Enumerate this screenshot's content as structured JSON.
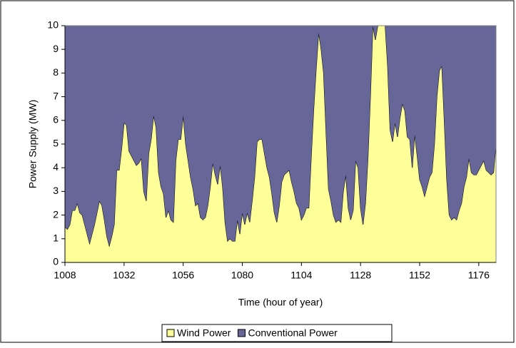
{
  "chart_data": {
    "type": "stacked_area",
    "x_label": "Time (hour of year)",
    "y_label": "Power Supply (MW)",
    "x": [
      1008,
      1009,
      1010,
      1011,
      1012,
      1013,
      1014,
      1015,
      1016,
      1017,
      1018,
      1019,
      1020,
      1021,
      1022,
      1023,
      1024,
      1025,
      1026,
      1027,
      1028,
      1029,
      1030,
      1031,
      1032,
      1033,
      1034,
      1035,
      1036,
      1037,
      1038,
      1039,
      1040,
      1041,
      1042,
      1043,
      1044,
      1045,
      1046,
      1047,
      1048,
      1049,
      1050,
      1051,
      1052,
      1053,
      1054,
      1055,
      1056,
      1057,
      1058,
      1059,
      1060,
      1061,
      1062,
      1063,
      1064,
      1065,
      1066,
      1067,
      1068,
      1069,
      1070,
      1071,
      1072,
      1073,
      1074,
      1075,
      1076,
      1077,
      1078,
      1079,
      1080,
      1081,
      1082,
      1083,
      1084,
      1085,
      1086,
      1087,
      1088,
      1089,
      1090,
      1091,
      1092,
      1093,
      1094,
      1095,
      1096,
      1097,
      1098,
      1099,
      1100,
      1101,
      1102,
      1103,
      1104,
      1105,
      1106,
      1107,
      1108,
      1109,
      1110,
      1111,
      1112,
      1113,
      1114,
      1115,
      1116,
      1117,
      1118,
      1119,
      1120,
      1121,
      1122,
      1123,
      1124,
      1125,
      1126,
      1127,
      1128,
      1129,
      1130,
      1131,
      1132,
      1133,
      1134,
      1135,
      1136,
      1137,
      1138,
      1139,
      1140,
      1141,
      1142,
      1143,
      1144,
      1145,
      1146,
      1147,
      1148,
      1149,
      1150,
      1151,
      1152,
      1153,
      1154,
      1155,
      1156,
      1157,
      1158,
      1159,
      1160,
      1161,
      1162,
      1163,
      1164,
      1165,
      1166,
      1167,
      1168,
      1169,
      1170,
      1171,
      1172,
      1173,
      1174,
      1175,
      1176,
      1177,
      1178,
      1179,
      1180,
      1181,
      1182,
      1183
    ],
    "series": [
      {
        "name": "Wind Power",
        "color": "#ffff99",
        "values": [
          1.5,
          1.4,
          1.6,
          2.2,
          2.2,
          2.5,
          2.1,
          2.0,
          1.6,
          1.2,
          0.8,
          1.2,
          1.6,
          2.1,
          2.6,
          2.4,
          1.8,
          1.1,
          0.7,
          1.1,
          1.6,
          3.9,
          3.9,
          4.8,
          5.9,
          5.8,
          4.7,
          4.5,
          4.3,
          4.1,
          4.2,
          4.4,
          3.0,
          2.6,
          4.6,
          5.2,
          6.2,
          5.7,
          3.8,
          3.2,
          2.9,
          1.9,
          2.2,
          1.8,
          1.7,
          4.3,
          5.2,
          5.2,
          6.2,
          5.0,
          4.3,
          3.6,
          3.1,
          2.4,
          2.5,
          1.9,
          1.8,
          1.9,
          2.4,
          3.2,
          4.2,
          3.7,
          3.3,
          4.1,
          3.2,
          1.7,
          0.9,
          1.0,
          0.9,
          0.9,
          1.8,
          1.2,
          2.1,
          1.6,
          2.1,
          1.7,
          2.6,
          3.6,
          5.1,
          5.2,
          5.2,
          4.6,
          4.0,
          3.6,
          2.9,
          2.1,
          1.7,
          2.4,
          3.4,
          3.7,
          3.8,
          3.9,
          3.4,
          3.0,
          2.5,
          2.3,
          1.8,
          2.0,
          2.3,
          2.3,
          4.5,
          6.5,
          8.2,
          9.7,
          9.0,
          8.0,
          5.5,
          3.1,
          2.6,
          2.0,
          1.7,
          1.8,
          1.7,
          3.0,
          3.7,
          2.3,
          1.8,
          2.2,
          4.3,
          4.0,
          2.3,
          1.6,
          2.5,
          4.4,
          7.0,
          10,
          9.4,
          10,
          10,
          10,
          10,
          8.3,
          5.6,
          5.1,
          5.9,
          5.3,
          6.1,
          6.7,
          6.4,
          5.3,
          5.2,
          4.0,
          5.4,
          4.5,
          3.5,
          3.2,
          2.8,
          3.2,
          3.6,
          3.8,
          5.0,
          7.0,
          8.1,
          8.3,
          6.0,
          3.5,
          2.0,
          1.8,
          1.9,
          1.8,
          2.2,
          2.5,
          3.2,
          3.6,
          4.4,
          3.8,
          3.7,
          3.7,
          3.9,
          4.1,
          4.3,
          3.9,
          3.8,
          3.7,
          3.8,
          5.0
        ]
      },
      {
        "name": "Conventional Power",
        "color": "#666699",
        "values": [
          8.5,
          8.6,
          8.4,
          7.8,
          7.8,
          7.5,
          7.9,
          8.0,
          8.4,
          8.8,
          9.2,
          8.8,
          8.4,
          7.9,
          7.4,
          7.6,
          8.2,
          8.9,
          9.3,
          8.9,
          8.4,
          6.1,
          6.1,
          5.2,
          4.1,
          4.2,
          5.3,
          5.5,
          5.7,
          5.9,
          5.8,
          5.6,
          7.0,
          7.4,
          5.4,
          4.8,
          3.8,
          4.3,
          6.2,
          6.8,
          7.1,
          8.1,
          7.8,
          8.2,
          8.3,
          5.7,
          4.8,
          4.8,
          3.8,
          5.0,
          5.7,
          6.4,
          6.9,
          7.6,
          7.5,
          8.1,
          8.2,
          8.1,
          7.6,
          6.8,
          5.8,
          6.3,
          6.7,
          5.9,
          6.8,
          8.3,
          9.1,
          9.0,
          9.1,
          9.1,
          8.2,
          8.8,
          7.9,
          8.4,
          7.9,
          8.3,
          7.4,
          6.4,
          4.9,
          4.8,
          4.8,
          5.4,
          6.0,
          6.4,
          7.1,
          7.9,
          8.3,
          7.6,
          6.6,
          6.3,
          6.2,
          6.1,
          6.6,
          7.0,
          7.5,
          7.7,
          8.2,
          8.0,
          7.7,
          7.7,
          5.5,
          3.5,
          1.8,
          0.3,
          1.0,
          2.0,
          4.5,
          6.9,
          7.4,
          8.0,
          8.3,
          8.2,
          8.3,
          7.0,
          6.3,
          7.7,
          8.2,
          7.8,
          5.7,
          6.0,
          7.7,
          8.4,
          7.5,
          5.6,
          3.0,
          0,
          0.6,
          0,
          0,
          0,
          0,
          1.7,
          4.4,
          4.9,
          4.1,
          4.7,
          3.9,
          3.3,
          3.6,
          4.7,
          4.8,
          6.0,
          4.6,
          5.5,
          6.5,
          6.8,
          7.2,
          6.8,
          6.4,
          6.2,
          5.0,
          3.0,
          1.9,
          1.7,
          4.0,
          6.5,
          8.0,
          8.2,
          8.1,
          8.2,
          7.8,
          7.5,
          6.8,
          6.4,
          5.6,
          6.2,
          6.3,
          6.3,
          6.1,
          5.9,
          5.7,
          6.1,
          6.2,
          6.3,
          6.2,
          5.0
        ]
      }
    ],
    "xlim": [
      1008,
      1183
    ],
    "xticks": [
      1008,
      1032,
      1056,
      1080,
      1104,
      1128,
      1152,
      1176
    ],
    "ylim": [
      0,
      10
    ],
    "yticks": [
      0,
      1,
      2,
      3,
      4,
      5,
      6,
      7,
      8,
      9,
      10
    ],
    "legend": "bottom"
  }
}
